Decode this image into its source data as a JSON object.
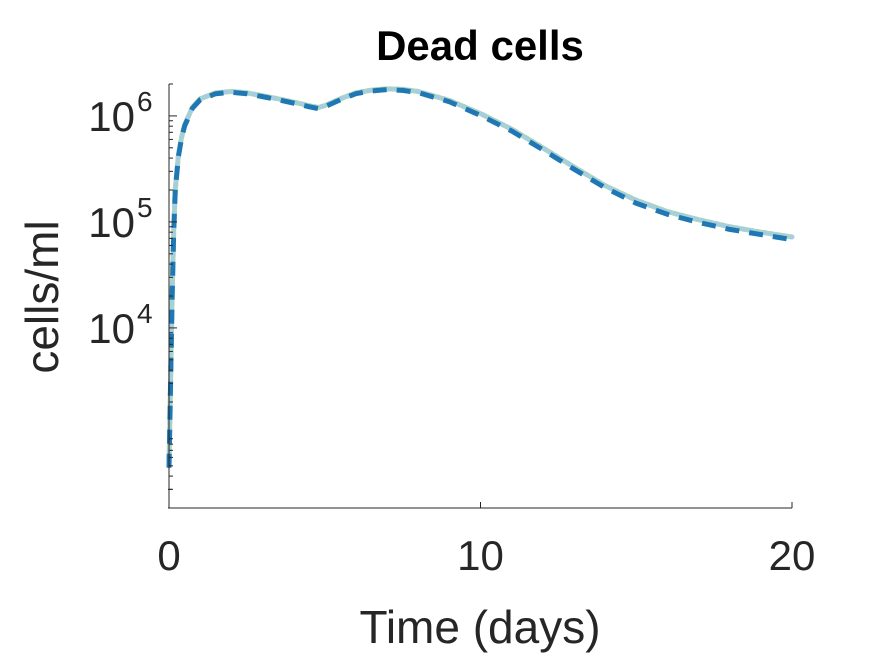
{
  "chart_data": {
    "type": "line",
    "title": "Dead cells",
    "xlabel": "Time (days)",
    "ylabel": "cells/ml",
    "y_scale": "log",
    "xlim": [
      0,
      20
    ],
    "ylim": [
      200,
      2000000
    ],
    "x_ticks": [
      {
        "value": 0,
        "label": "0"
      },
      {
        "value": 10,
        "label": "10"
      },
      {
        "value": 20,
        "label": "20"
      }
    ],
    "y_ticks": [
      {
        "value": 10000,
        "base": "10",
        "exp": "4"
      },
      {
        "value": 100000,
        "base": "10",
        "exp": "5"
      },
      {
        "value": 1000000,
        "base": "10",
        "exp": "6"
      }
    ],
    "grid": false,
    "series": [
      {
        "style": "solid",
        "color": "#b2df8a",
        "x": [
          0,
          0.05,
          0.1,
          0.15,
          0.2,
          0.3,
          0.4,
          0.5,
          0.75,
          1,
          1.5,
          2,
          2.5,
          3,
          3.5,
          4,
          4.5,
          4.8,
          5,
          5.5,
          6,
          6.5,
          7,
          7.5,
          8,
          9,
          10,
          11,
          12,
          13,
          14,
          15,
          16,
          17,
          18,
          19,
          20
        ],
        "y": [
          500,
          3000,
          20000,
          80000,
          200000,
          420000,
          620000,
          820000,
          1200000,
          1450000,
          1650000,
          1700000,
          1650000,
          1550000,
          1450000,
          1350000,
          1250000,
          1200000,
          1250000,
          1450000,
          1650000,
          1750000,
          1800000,
          1780000,
          1700000,
          1400000,
          1050000,
          750000,
          500000,
          330000,
          220000,
          160000,
          125000,
          105000,
          90000,
          80000,
          72000
        ]
      },
      {
        "style": "dotted",
        "color": "#a6cee3",
        "x": [
          0,
          0.05,
          0.1,
          0.15,
          0.2,
          0.3,
          0.4,
          0.5,
          0.75,
          1,
          1.5,
          2,
          2.5,
          3,
          3.5,
          4,
          4.5,
          4.8,
          5,
          5.5,
          6,
          6.5,
          7,
          7.5,
          8,
          9,
          10,
          11,
          12,
          13,
          14,
          15,
          16,
          17,
          18,
          19,
          20
        ],
        "y": [
          500,
          3000,
          20000,
          80000,
          200000,
          420000,
          620000,
          820000,
          1200000,
          1450000,
          1650000,
          1700000,
          1650000,
          1550000,
          1450000,
          1350000,
          1250000,
          1200000,
          1250000,
          1450000,
          1650000,
          1750000,
          1800000,
          1780000,
          1700000,
          1400000,
          1050000,
          750000,
          500000,
          330000,
          220000,
          160000,
          125000,
          105000,
          90000,
          80000,
          72000
        ]
      },
      {
        "style": "dashed",
        "color": "#1f78b4",
        "x": [
          0,
          0.05,
          0.1,
          0.15,
          0.2,
          0.3,
          0.4,
          0.5,
          0.75,
          1,
          1.5,
          2,
          2.5,
          3,
          3.5,
          4,
          4.5,
          4.8,
          5,
          5.5,
          6,
          6.5,
          7,
          7.5,
          8,
          9,
          10,
          11,
          12,
          13,
          14,
          15,
          16,
          17,
          18,
          19,
          20
        ],
        "y": [
          480,
          2900,
          19000,
          78000,
          195000,
          410000,
          610000,
          800000,
          1180000,
          1420000,
          1620000,
          1670000,
          1620000,
          1520000,
          1420000,
          1320000,
          1220000,
          1170000,
          1220000,
          1420000,
          1620000,
          1720000,
          1770000,
          1740000,
          1660000,
          1360000,
          1010000,
          720000,
          480000,
          315000,
          210000,
          150000,
          118000,
          99000,
          85000,
          76000,
          68000
        ]
      }
    ]
  }
}
